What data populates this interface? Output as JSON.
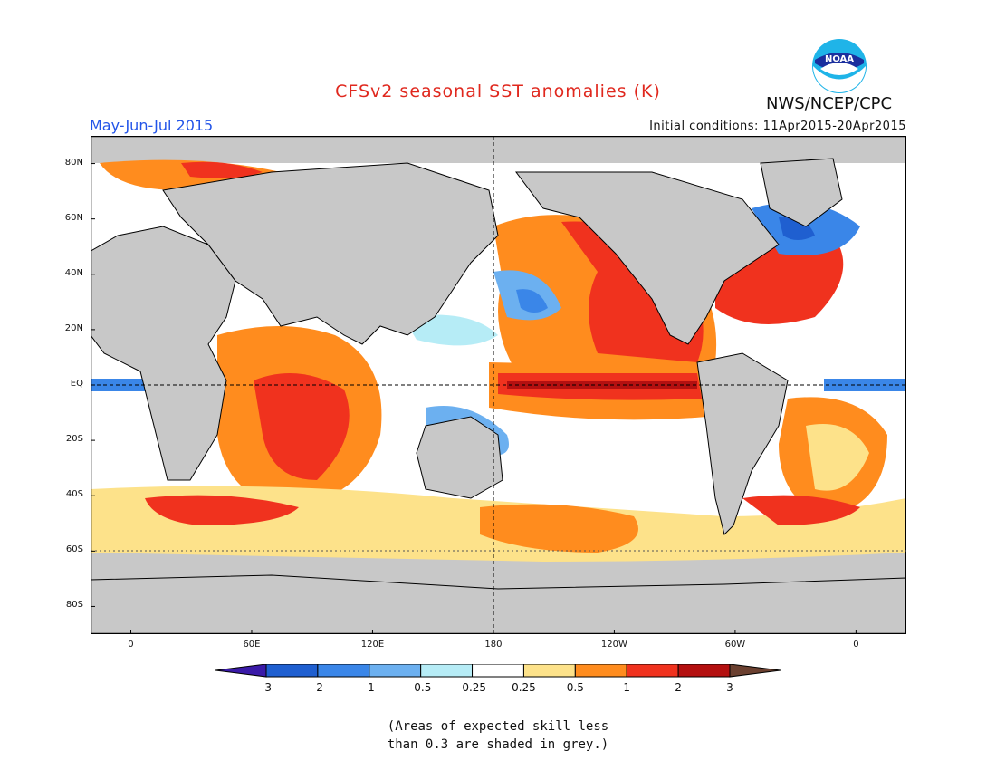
{
  "header": {
    "title": "CFSv2 seasonal SST anomalies (K)",
    "agency": "NWS/NCEP/CPC",
    "season": "May-Jun-Jul 2015",
    "initial_conditions": "Initial conditions: 11Apr2015-20Apr2015",
    "logo_text": "NOAA"
  },
  "axes": {
    "lat_labels": [
      "80N",
      "60N",
      "40N",
      "20N",
      "EQ",
      "20S",
      "40S",
      "60S",
      "80S"
    ],
    "lat_values": [
      80,
      60,
      40,
      20,
      0,
      -20,
      -40,
      -60,
      -80
    ],
    "lon_labels": [
      "0",
      "60E",
      "120E",
      "180",
      "120W",
      "60W",
      "0"
    ],
    "lon_values": [
      0,
      60,
      120,
      180,
      240,
      300,
      360
    ],
    "lon_range": [
      -20,
      385
    ],
    "lat_range": [
      -90,
      90
    ]
  },
  "colorbar": {
    "labels": [
      "-3",
      "-2",
      "-1",
      "-0.5",
      "-0.25",
      "0.25",
      "0.5",
      "1",
      "2",
      "3"
    ],
    "colors": [
      "#3a1aa8",
      "#1f5fd0",
      "#3a86e8",
      "#6cb0f0",
      "#b6ecf6",
      "#ffffff",
      "#fde28a",
      "#ff8c1e",
      "#f0321e",
      "#b41010",
      "#6b4030"
    ]
  },
  "note": {
    "line1": "(Areas of expected skill less",
    "line2": "than 0.3 are shaded in grey.)"
  },
  "colors": {
    "land": "#c8c8c8",
    "ocean_grey": "#c8c8c8",
    "title": "#e0281e",
    "season": "#2254e8"
  }
}
